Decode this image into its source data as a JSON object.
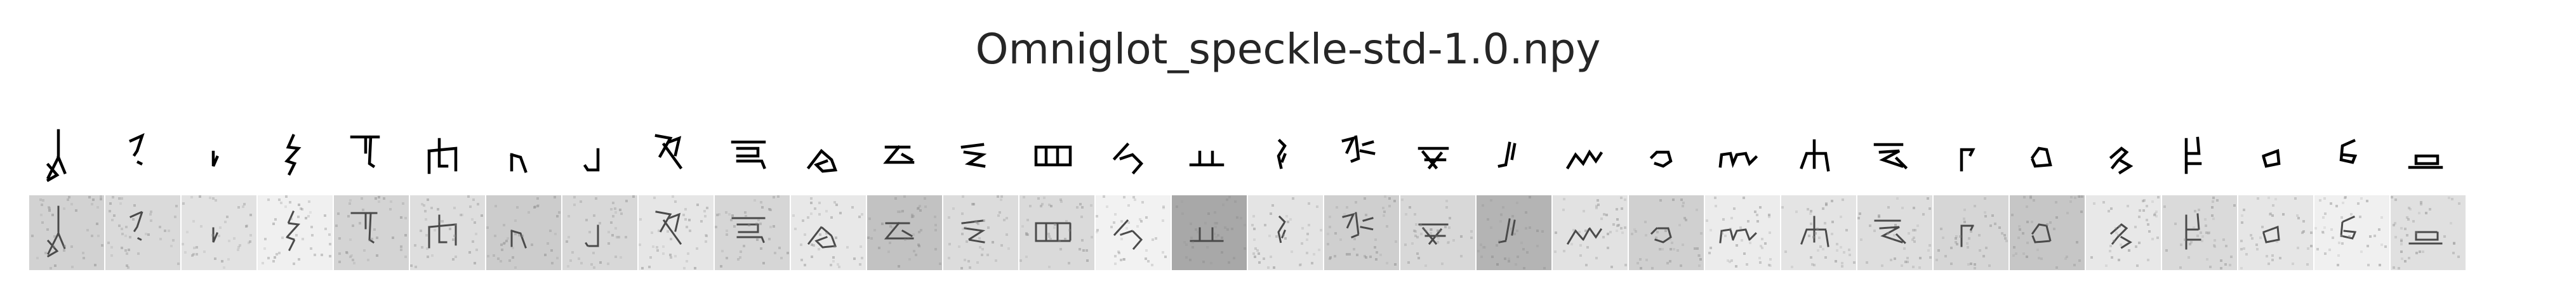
{
  "title": "Omniglot_speckle-std-1.0.npy",
  "panels": [
    {
      "id": "clean",
      "background": "#ffffff",
      "ink": "#000000"
    },
    {
      "id": "speckle-noise",
      "ink": "#4a4a4a",
      "speckle_color": "#8a8a8a"
    }
  ],
  "characters": [
    {
      "glyph": "i1",
      "noisy_bg": "#d2d2d2"
    },
    {
      "glyph": "i2",
      "noisy_bg": "#dadada"
    },
    {
      "glyph": "i3",
      "noisy_bg": "#e2e2e2"
    },
    {
      "glyph": "i4",
      "noisy_bg": "#f0f0f0"
    },
    {
      "glyph": "i5",
      "noisy_bg": "#d4d4d4"
    },
    {
      "glyph": "i6",
      "noisy_bg": "#dedede"
    },
    {
      "glyph": "i7",
      "noisy_bg": "#cccccc"
    },
    {
      "glyph": "i8",
      "noisy_bg": "#d8d8d8"
    },
    {
      "glyph": "i9",
      "noisy_bg": "#e6e6e6"
    },
    {
      "glyph": "i10",
      "noisy_bg": "#d6d6d6"
    },
    {
      "glyph": "i11",
      "noisy_bg": "#e8e8e8"
    },
    {
      "glyph": "i12",
      "noisy_bg": "#c2c2c2"
    },
    {
      "glyph": "i13",
      "noisy_bg": "#dcdcdc"
    },
    {
      "glyph": "i14",
      "noisy_bg": "#dadada"
    },
    {
      "glyph": "i15",
      "noisy_bg": "#f2f2f2"
    },
    {
      "glyph": "i16",
      "noisy_bg": "#a8a8a8"
    },
    {
      "glyph": "i17",
      "noisy_bg": "#e4e4e4"
    },
    {
      "glyph": "i18",
      "noisy_bg": "#cfcfcf"
    },
    {
      "glyph": "i19",
      "noisy_bg": "#d8d8d8"
    },
    {
      "glyph": "i20",
      "noisy_bg": "#b4b4b4"
    },
    {
      "glyph": "i21",
      "noisy_bg": "#e2e2e2"
    },
    {
      "glyph": "i22",
      "noisy_bg": "#d0d0d0"
    },
    {
      "glyph": "i23",
      "noisy_bg": "#ececec"
    },
    {
      "glyph": "i24",
      "noisy_bg": "#e4e4e4"
    },
    {
      "glyph": "i25",
      "noisy_bg": "#dedede"
    },
    {
      "glyph": "i26",
      "noisy_bg": "#d6d6d6"
    },
    {
      "glyph": "i27",
      "noisy_bg": "#c6c6c6"
    },
    {
      "glyph": "i28",
      "noisy_bg": "#e8e8e8"
    },
    {
      "glyph": "i29",
      "noisy_bg": "#dadada"
    },
    {
      "glyph": "i30",
      "noisy_bg": "#e6e6e6"
    },
    {
      "glyph": "i31",
      "noisy_bg": "#f0f0f0"
    },
    {
      "glyph": "i32",
      "noisy_bg": "#e0e0e0"
    }
  ]
}
